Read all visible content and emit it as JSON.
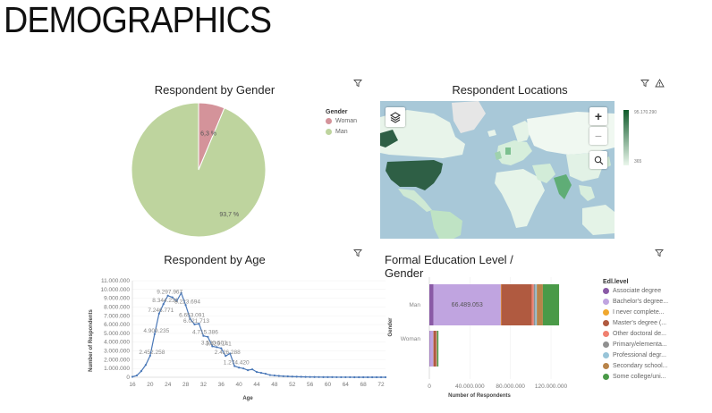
{
  "page": {
    "title": "DEMOGRAPHICS"
  },
  "colors": {
    "woman": "#d4939a",
    "man": "#bed49e",
    "line": "#4a78b8",
    "map_water": "#a8c8d8",
    "map_land": "#eef6ef"
  },
  "gender_widget": {
    "title": "Respondent by Gender",
    "filter_icon": "filter-icon",
    "legend_title": "Gender",
    "legend": [
      {
        "label": "Woman",
        "color": "#d4939a"
      },
      {
        "label": "Man",
        "color": "#bed49e"
      }
    ],
    "labels": {
      "woman": "6,3 %",
      "man": "93,7 %"
    }
  },
  "locations_widget": {
    "title": "Respondent Locations",
    "filter_icon": "filter-icon",
    "warning_icon": "warning-icon",
    "layers_icon": "layers-icon",
    "zoom_in": "+",
    "zoom_out": "−",
    "search_icon": "search-icon",
    "scale_max": "95.170.290",
    "scale_min": "365"
  },
  "age_widget": {
    "title": "Respondent by Age",
    "filter_icon": "filter-icon",
    "ylabel": "Number of Respondents",
    "xlabel": "Age"
  },
  "education_widget": {
    "title": "Formal Education Level / Gender",
    "filter_icon": "filter-icon",
    "legend_title": "Edl.level",
    "legend": [
      {
        "label": "Associate degree",
        "color": "#8a5aa6"
      },
      {
        "label": "Bachelor's degree...",
        "color": "#c0a4e0"
      },
      {
        "label": "I never complete...",
        "color": "#f0a830"
      },
      {
        "label": "Master's degree (...",
        "color": "#b05a40"
      },
      {
        "label": "Other doctoral de...",
        "color": "#f08070"
      },
      {
        "label": "Primary/elementa...",
        "color": "#909090"
      },
      {
        "label": "Professional degr...",
        "color": "#98c4d8"
      },
      {
        "label": "Secondary school...",
        "color": "#b8844a"
      },
      {
        "label": "Some college/uni...",
        "color": "#4a9a48"
      }
    ],
    "ylabel": "Gender",
    "xlabel": "Number of Respondents",
    "bar_label": "66.489.053"
  },
  "chart_data": [
    {
      "type": "pie",
      "title": "Respondent by Gender",
      "labels": [
        "Woman",
        "Man"
      ],
      "values": [
        6.3,
        93.7
      ],
      "data_labels": [
        "6,3 %",
        "93,7 %"
      ]
    },
    {
      "type": "line",
      "title": "Respondent by Age",
      "xlabel": "Age",
      "ylabel": "Number of Respondents",
      "xlim": [
        16,
        73
      ],
      "ylim": [
        0,
        11000000
      ],
      "x_ticks": [
        "16",
        "20",
        "24",
        "28",
        "32",
        "36",
        "40",
        "44",
        "48",
        "52",
        "56",
        "60",
        "64",
        "68",
        "72"
      ],
      "y_ticks": [
        "0",
        "1.000.000",
        "2.000.000",
        "3.000.000",
        "4.000.000",
        "5.000.000",
        "6.000.000",
        "7.000.000",
        "8.000.000",
        "9.000.000",
        "10.000.000",
        "11.000.000"
      ],
      "x": [
        16,
        17,
        18,
        19,
        20,
        21,
        22,
        23,
        24,
        25,
        26,
        27,
        28,
        29,
        30,
        31,
        32,
        33,
        34,
        35,
        36,
        37,
        38,
        39,
        40,
        41,
        42,
        43,
        44,
        45,
        46,
        47,
        48,
        49,
        50,
        51,
        52,
        53,
        54,
        55,
        56,
        57,
        58,
        59,
        60,
        61,
        62,
        63,
        64,
        65,
        66,
        67,
        68,
        69,
        70,
        71,
        72,
        73
      ],
      "y": [
        50000,
        200000,
        700000,
        1400000,
        2452258,
        4909235,
        7246771,
        8344231,
        9297967,
        9100000,
        8700000,
        9600000,
        8223694,
        6653091,
        6021713,
        6100000,
        4715386,
        4600000,
        3520501,
        3429141,
        3300000,
        2426288,
        2700000,
        1274420,
        1100000,
        1000000,
        800000,
        900000,
        600000,
        500000,
        400000,
        250000,
        200000,
        150000,
        120000,
        100000,
        80000,
        60000,
        50000,
        40000,
        30000,
        25000,
        20000,
        15000,
        12000,
        10000,
        8000,
        6000,
        5000,
        4000,
        3000,
        2500,
        2000,
        1500,
        1200,
        1000,
        800,
        600
      ],
      "data_labels": [
        {
          "x": 20,
          "label": "2.452.258"
        },
        {
          "x": 21,
          "label": "4.909.235"
        },
        {
          "x": 22,
          "label": "7.246.771"
        },
        {
          "x": 23,
          "label": "8.344.231"
        },
        {
          "x": 24,
          "label": "9.297.967"
        },
        {
          "x": 28,
          "label": "8.223.694"
        },
        {
          "x": 29,
          "label": "6.653.091"
        },
        {
          "x": 30,
          "label": "6.021.713"
        },
        {
          "x": 32,
          "label": "4.715.386"
        },
        {
          "x": 34,
          "label": "3.520.501"
        },
        {
          "x": 35,
          "label": "3.429.141"
        },
        {
          "x": 37,
          "label": "2.426.288"
        },
        {
          "x": 39,
          "label": "1.274.420"
        }
      ]
    },
    {
      "type": "bar",
      "orientation": "horizontal",
      "stacked": true,
      "title": "Formal Education Level / Gender",
      "xlabel": "Number of Respondents",
      "ylabel": "Gender",
      "categories": [
        "Man",
        "Woman"
      ],
      "x_ticks": [
        "0",
        "40.000.000",
        "80.000.000",
        "120.000.000"
      ],
      "xlim": [
        0,
        150000000
      ],
      "series": [
        {
          "name": "Associate degree",
          "values": [
            4000000,
            600000
          ]
        },
        {
          "name": "Bachelor's degree...",
          "values": [
            66489053,
            3500000
          ]
        },
        {
          "name": "I never complete...",
          "values": [
            500000,
            50000
          ]
        },
        {
          "name": "Master's degree (...",
          "values": [
            30000000,
            2500000
          ]
        },
        {
          "name": "Other doctoral de...",
          "values": [
            2000000,
            300000
          ]
        },
        {
          "name": "Primary/elementa...",
          "values": [
            1500000,
            100000
          ]
        },
        {
          "name": "Professional degr...",
          "values": [
            1500000,
            200000
          ]
        },
        {
          "name": "Secondary school...",
          "values": [
            6000000,
            500000
          ]
        },
        {
          "name": "Some college/uni...",
          "values": [
            16000000,
            1200000
          ]
        }
      ]
    }
  ]
}
